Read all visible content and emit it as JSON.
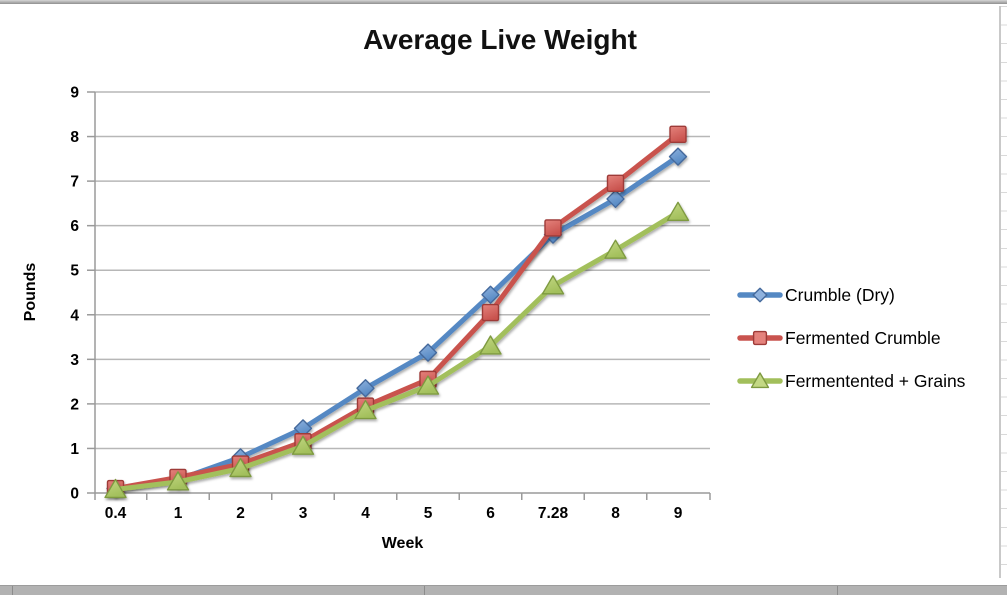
{
  "chart_data": {
    "type": "line",
    "title": "Average Live Weight",
    "xlabel": "Week",
    "ylabel": "Pounds",
    "categories": [
      "0.4",
      "1",
      "2",
      "3",
      "4",
      "5",
      "6",
      "7.28",
      "8",
      "9"
    ],
    "y_ticks": [
      0,
      1,
      2,
      3,
      4,
      5,
      6,
      7,
      8,
      9
    ],
    "ylim": [
      0,
      9
    ],
    "grid": "horizontal",
    "legend_position": "right",
    "series": [
      {
        "name": "Crumble (Dry)",
        "marker": "diamond",
        "color": "#5488C3",
        "marker_fill": "#8FB2DE",
        "marker_stroke": "#44699C",
        "values": [
          0.1,
          0.3,
          0.8,
          1.45,
          2.35,
          3.15,
          4.45,
          5.8,
          6.6,
          7.55
        ]
      },
      {
        "name": "Fermented Crumble",
        "marker": "square",
        "color": "#C9534E",
        "marker_fill": "#E4827C",
        "marker_stroke": "#9E3B38",
        "values": [
          0.1,
          0.35,
          0.65,
          1.15,
          1.95,
          2.55,
          4.05,
          5.95,
          6.95,
          8.05
        ]
      },
      {
        "name": "Fermentented + Grains",
        "marker": "triangle",
        "color": "#A2BF5B",
        "marker_fill": "#C3D884",
        "marker_stroke": "#7E9A41",
        "values": [
          0.08,
          0.25,
          0.55,
          1.05,
          1.85,
          2.4,
          3.3,
          4.65,
          5.45,
          6.3
        ]
      }
    ],
    "axis_color": "#9a9a9a",
    "gridline_color": "#b7b7b7",
    "tick_label_color": "#000000"
  },
  "chrome": {
    "top_strip_color": "#8f8f8f",
    "bottom_strip_color": "#b2b2b2",
    "sheet_line_color": "#c9c9c9"
  }
}
